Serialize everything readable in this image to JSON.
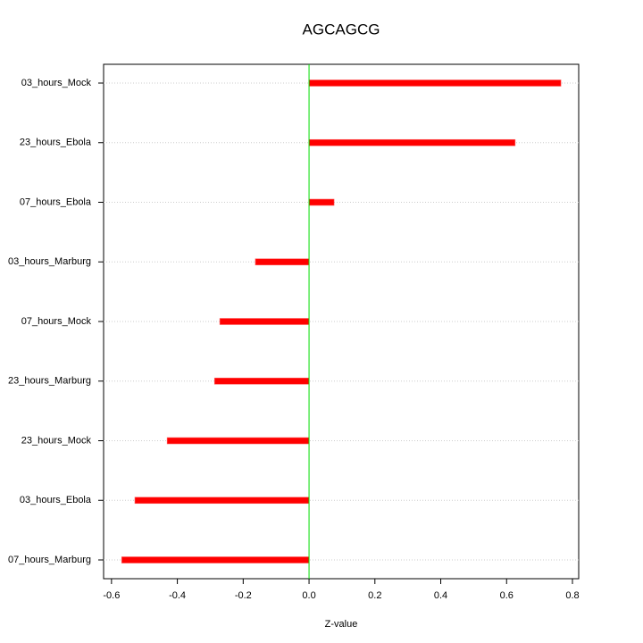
{
  "chart_data": {
    "type": "barh",
    "title": "AGCAGCG",
    "x_label": "Z-value",
    "categories": [
      "03_hours_Mock",
      "23_hours_Ebola",
      "07_hours_Ebola",
      "03_hours_Marburg",
      "07_hours_Mock",
      "23_hours_Marburg",
      "23_hours_Mock",
      "03_hours_Ebola",
      "07_hours_Marburg"
    ],
    "values": [
      0.765,
      0.626,
      0.076,
      -0.163,
      -0.271,
      -0.287,
      -0.431,
      -0.529,
      -0.569
    ],
    "color": "#ff0000",
    "zero_line_color": "#00dd00",
    "xlim": [
      -0.624,
      0.819
    ],
    "xticks": [
      -0.6,
      -0.4,
      -0.2,
      {
        "value": 0,
        "label": "0.0"
      },
      0.2,
      0.4,
      0.6,
      0.8
    ],
    "grid": true
  }
}
